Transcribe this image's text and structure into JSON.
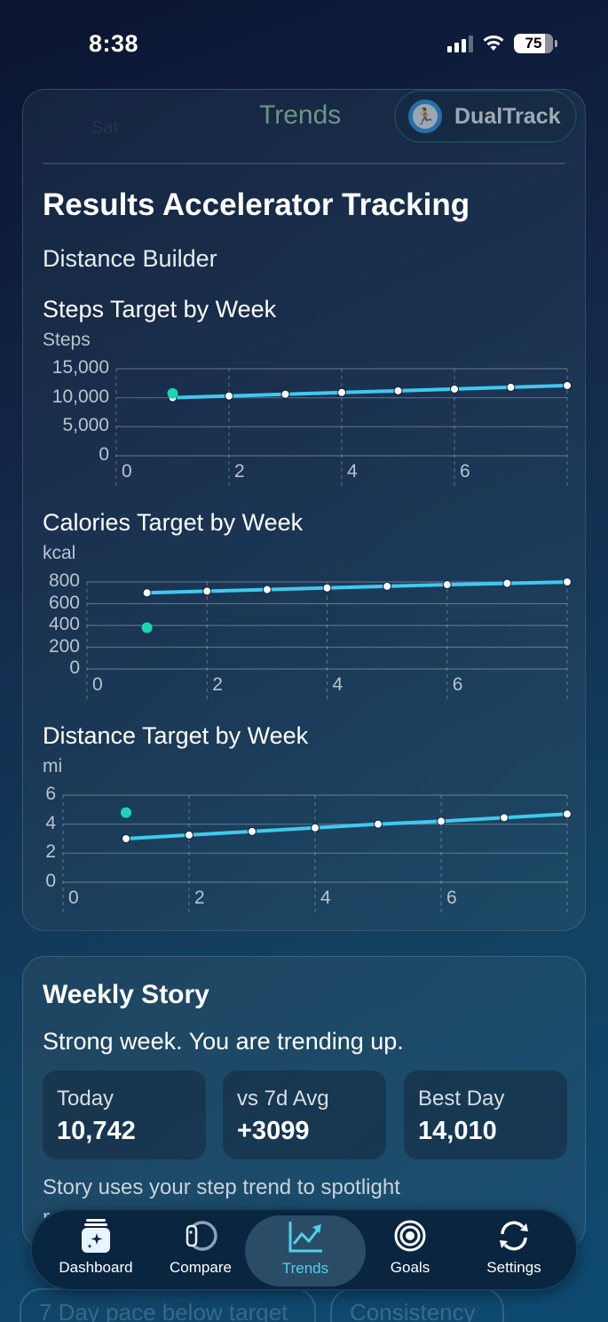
{
  "background_ghost": {
    "labels": [
      "Sat"
    ]
  },
  "status_bar": {
    "time": "8:38",
    "battery": "75"
  },
  "header": {
    "title": "Trends",
    "app_name": "DualTrack",
    "app_icon": "runner-icon"
  },
  "main": {
    "title": "Results Accelerator Tracking",
    "subtitle": "Distance Builder"
  },
  "chart_data": [
    {
      "type": "line",
      "title": "Steps Target by Week",
      "ylabel": "Steps",
      "xlabel": "",
      "x": [
        1,
        2,
        3,
        4,
        5,
        6,
        7,
        8
      ],
      "series": [
        {
          "name": "Target",
          "values": [
            10000,
            10300,
            10600,
            10900,
            11200,
            11500,
            11800,
            12100
          ],
          "color": "#41c9ef"
        }
      ],
      "actual": {
        "x": 1,
        "value": 10742,
        "color": "#1fd4b4"
      },
      "yticks": [
        "0",
        "5,000",
        "10,000",
        "15,000"
      ],
      "yvals": [
        0,
        5000,
        10000,
        15000
      ],
      "xticks": [
        "0",
        "2",
        "4",
        "6"
      ],
      "ylim": [
        0,
        15000
      ],
      "xlim": [
        0,
        8
      ]
    },
    {
      "type": "line",
      "title": "Calories Target by Week",
      "ylabel": "kcal",
      "xlabel": "",
      "x": [
        1,
        2,
        3,
        4,
        5,
        6,
        7,
        8
      ],
      "series": [
        {
          "name": "Target",
          "values": [
            700,
            715,
            730,
            745,
            760,
            775,
            787,
            800
          ],
          "color": "#41c9ef"
        }
      ],
      "actual": {
        "x": 1,
        "value": 380,
        "color": "#1fd4b4"
      },
      "yticks": [
        "0",
        "200",
        "400",
        "600",
        "800"
      ],
      "yvals": [
        0,
        200,
        400,
        600,
        800
      ],
      "xticks": [
        "0",
        "2",
        "4",
        "6"
      ],
      "ylim": [
        0,
        800
      ],
      "xlim": [
        0,
        8
      ]
    },
    {
      "type": "line",
      "title": "Distance Target by Week",
      "ylabel": "mi",
      "xlabel": "",
      "x": [
        1,
        2,
        3,
        4,
        5,
        6,
        7,
        8
      ],
      "series": [
        {
          "name": "Target",
          "values": [
            3.0,
            3.25,
            3.5,
            3.75,
            4.0,
            4.2,
            4.45,
            4.7
          ],
          "color": "#41c9ef"
        }
      ],
      "actual": {
        "x": 1,
        "value": 4.8,
        "color": "#1fd4b4"
      },
      "yticks": [
        "0",
        "2",
        "4",
        "6"
      ],
      "yvals": [
        0,
        2,
        4,
        6
      ],
      "xticks": [
        "0",
        "2",
        "4",
        "6"
      ],
      "ylim": [
        0,
        6
      ],
      "xlim": [
        0,
        8
      ]
    }
  ],
  "weekly_story": {
    "title": "Weekly Story",
    "headline": "Strong week. You are trending up.",
    "stats": [
      {
        "label": "Today",
        "value": "10,742"
      },
      {
        "label": "vs 7d Avg",
        "value": "+3099"
      },
      {
        "label": "Best Day",
        "value": "14,010"
      }
    ],
    "story_text": "Story uses your step trend to spotlight",
    "story_text_2": "r"
  },
  "below_chips": [
    "7 Day pace below target",
    "Consistency"
  ],
  "tab_bar": {
    "items": [
      {
        "label": "Dashboard",
        "icon": "dashboard-icon"
      },
      {
        "label": "Compare",
        "icon": "watch-icon"
      },
      {
        "label": "Trends",
        "icon": "trend-chart-icon",
        "active": true
      },
      {
        "label": "Goals",
        "icon": "target-icon"
      },
      {
        "label": "Settings",
        "icon": "sync-icon"
      }
    ],
    "active_color": "#4fd1ea"
  }
}
